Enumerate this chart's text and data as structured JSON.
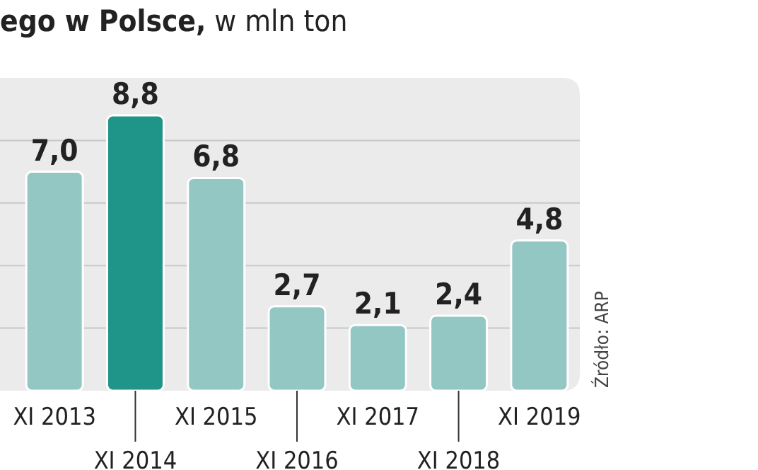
{
  "chart_data": {
    "type": "bar",
    "title": "ego w Polsce,",
    "subtitle": "w mln ton",
    "categories": [
      "XI 2013",
      "XI 2014",
      "XI 2015",
      "XI 2016",
      "XI 2017",
      "XI 2018",
      "XI 2019"
    ],
    "values": [
      7.0,
      8.8,
      6.8,
      2.7,
      2.1,
      2.4,
      4.8
    ],
    "colors": [
      "#93c7c4",
      "#1f9488",
      "#93c7c4",
      "#93c7c4",
      "#93c7c4",
      "#93c7c4",
      "#93c7c4"
    ],
    "value_labels": [
      "7,0",
      "8,8",
      "6,8",
      "2,7",
      "2,1",
      "2,4",
      "4,8"
    ],
    "ylim": [
      0,
      10
    ],
    "yticks": [
      {
        "value": 0,
        "label": null
      },
      {
        "value": 2,
        "label": null
      },
      {
        "value": 4,
        "label": null
      },
      {
        "value": 6,
        "label": null
      },
      {
        "value": 8,
        "label": null
      },
      {
        "value": 10,
        "label": null
      }
    ],
    "grid": "y",
    "tick_labels": "x",
    "annotations": [
      "Źródło: ARP"
    ]
  }
}
